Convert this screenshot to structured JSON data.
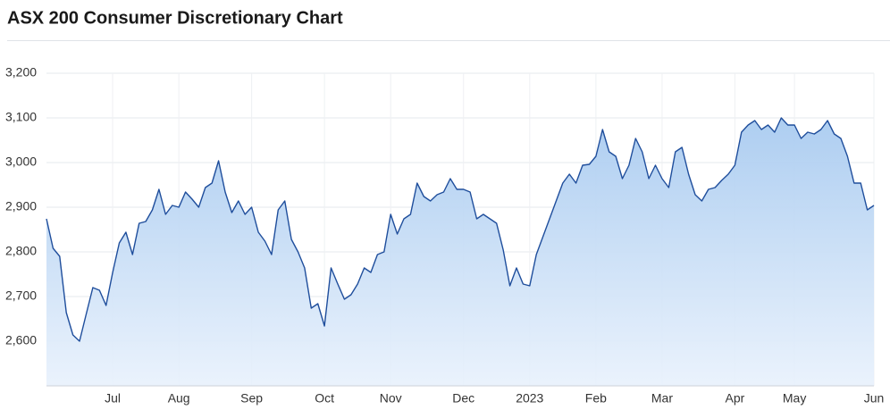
{
  "chart_data": {
    "type": "line",
    "title": "ASX 200 Consumer Discretionary Chart",
    "series": [
      {
        "name": "ASX 200 Consumer Discretionary",
        "color": "#1f4e9c",
        "values": [
          2874,
          2808,
          2790,
          2664,
          2614,
          2600,
          2660,
          2720,
          2714,
          2680,
          2754,
          2820,
          2844,
          2794,
          2864,
          2868,
          2894,
          2940,
          2884,
          2904,
          2900,
          2934,
          2918,
          2900,
          2944,
          2954,
          3004,
          2934,
          2888,
          2914,
          2884,
          2900,
          2844,
          2824,
          2794,
          2894,
          2914,
          2828,
          2800,
          2764,
          2674,
          2684,
          2634,
          2764,
          2728,
          2694,
          2704,
          2728,
          2764,
          2754,
          2794,
          2800,
          2884,
          2840,
          2874,
          2884,
          2954,
          2924,
          2914,
          2928,
          2934,
          2964,
          2940,
          2940,
          2934,
          2874,
          2884,
          2874,
          2864,
          2804,
          2724,
          2764,
          2728,
          2724,
          2794,
          2834,
          2874,
          2914,
          2954,
          2974,
          2954,
          2994,
          2996,
          3014,
          3074,
          3024,
          3014,
          2964,
          2994,
          3054,
          3024,
          2964,
          2994,
          2964,
          2944,
          3024,
          3034,
          2974,
          2928,
          2914,
          2940,
          2944,
          2960,
          2974,
          2994,
          3068,
          3084,
          3094,
          3074,
          3084,
          3068,
          3100,
          3084,
          3084,
          3054,
          3068,
          3064,
          3074,
          3094,
          3064,
          3054,
          3014,
          2954,
          2954,
          2894,
          2904
        ]
      }
    ],
    "xlim": [
      0,
      125
    ],
    "xticks": [
      {
        "value": 10,
        "label": "Jul"
      },
      {
        "value": 20,
        "label": "Aug"
      },
      {
        "value": 31,
        "label": "Sep"
      },
      {
        "value": 42,
        "label": "Oct"
      },
      {
        "value": 52,
        "label": "Nov"
      },
      {
        "value": 63,
        "label": "Dec"
      },
      {
        "value": 73,
        "label": "2023"
      },
      {
        "value": 83,
        "label": "Feb"
      },
      {
        "value": 93,
        "label": "Mar"
      },
      {
        "value": 104,
        "label": "Apr"
      },
      {
        "value": 113,
        "label": "May"
      },
      {
        "value": 125,
        "label": "Jun"
      }
    ],
    "ylim": [
      2500,
      3200
    ],
    "yticks": [
      {
        "value": 2600,
        "label": "2,600"
      },
      {
        "value": 2700,
        "label": "2,700"
      },
      {
        "value": 2800,
        "label": "2,800"
      },
      {
        "value": 2900,
        "label": "2,900"
      },
      {
        "value": 3000,
        "label": "3,000"
      },
      {
        "value": 3100,
        "label": "3,100"
      },
      {
        "value": 3200,
        "label": "3,200"
      }
    ],
    "grid": true
  }
}
